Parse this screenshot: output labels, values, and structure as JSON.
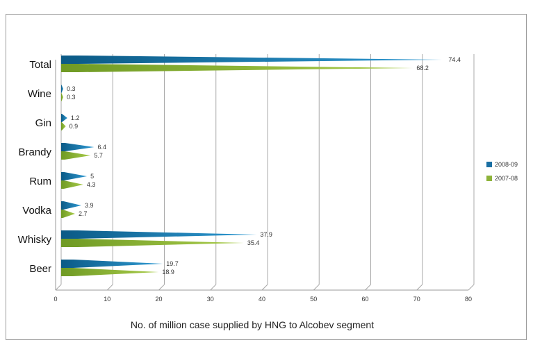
{
  "chart_data": {
    "type": "bar",
    "orientation": "horizontal",
    "title": "",
    "xlabel": "No. of million case supplied by HNG to Alcobev segment",
    "ylabel": "",
    "categories": [
      "Total",
      "Wine",
      "Gin",
      "Brandy",
      "Rum",
      "Vodka",
      "Whisky",
      "Beer"
    ],
    "series": [
      {
        "name": "2008-09",
        "color": "#1a6fa3",
        "values": [
          74.4,
          0.3,
          1.2,
          6.4,
          5,
          3.9,
          37.9,
          19.7
        ]
      },
      {
        "name": "2007-08",
        "color": "#8db33a",
        "values": [
          68.2,
          0.3,
          0.9,
          5.7,
          4.3,
          2.7,
          35.4,
          18.9
        ]
      }
    ],
    "xlim": [
      0,
      80
    ],
    "xticks": [
      0,
      10,
      20,
      30,
      40,
      50,
      60,
      70,
      80
    ],
    "grid": true,
    "legend_position": "right"
  }
}
